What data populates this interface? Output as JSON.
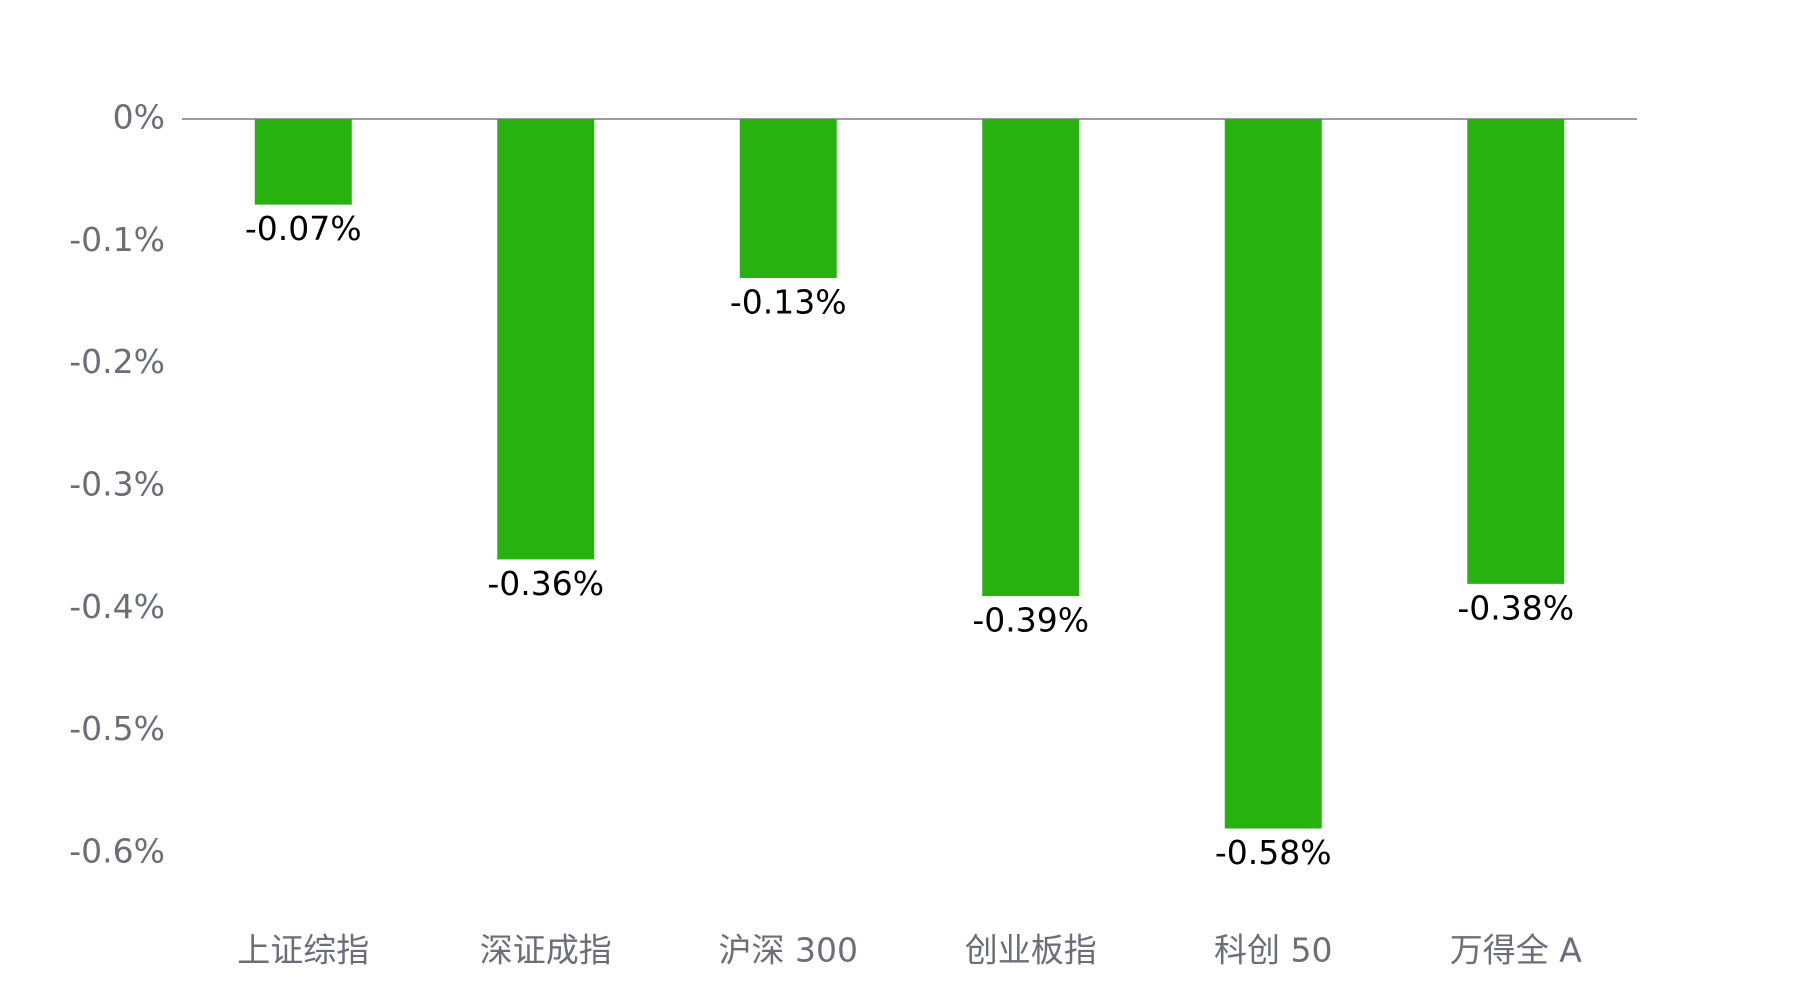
{
  "chart_data": {
    "type": "bar",
    "categories": [
      "上证综指",
      "深证成指",
      "沪深 300",
      "创业板指",
      "科创 50",
      "万得全 A"
    ],
    "values": [
      -0.07,
      -0.36,
      -0.13,
      -0.39,
      -0.58,
      -0.38
    ],
    "value_labels": [
      "-0.07%",
      "-0.36%",
      "-0.13%",
      "-0.39%",
      "-0.58%",
      "-0.38%"
    ],
    "color": "#28b20f",
    "ylim": [
      -0.6,
      0
    ],
    "yticks": [
      {
        "value": 0,
        "label": "0%"
      },
      {
        "value": -0.1,
        "label": "-0.1%"
      },
      {
        "value": -0.2,
        "label": "-0.2%"
      },
      {
        "value": -0.3,
        "label": "-0.3%"
      },
      {
        "value": -0.4,
        "label": "-0.4%"
      },
      {
        "value": -0.5,
        "label": "-0.5%"
      },
      {
        "value": -0.6,
        "label": "-0.6%"
      }
    ],
    "grid": false
  }
}
